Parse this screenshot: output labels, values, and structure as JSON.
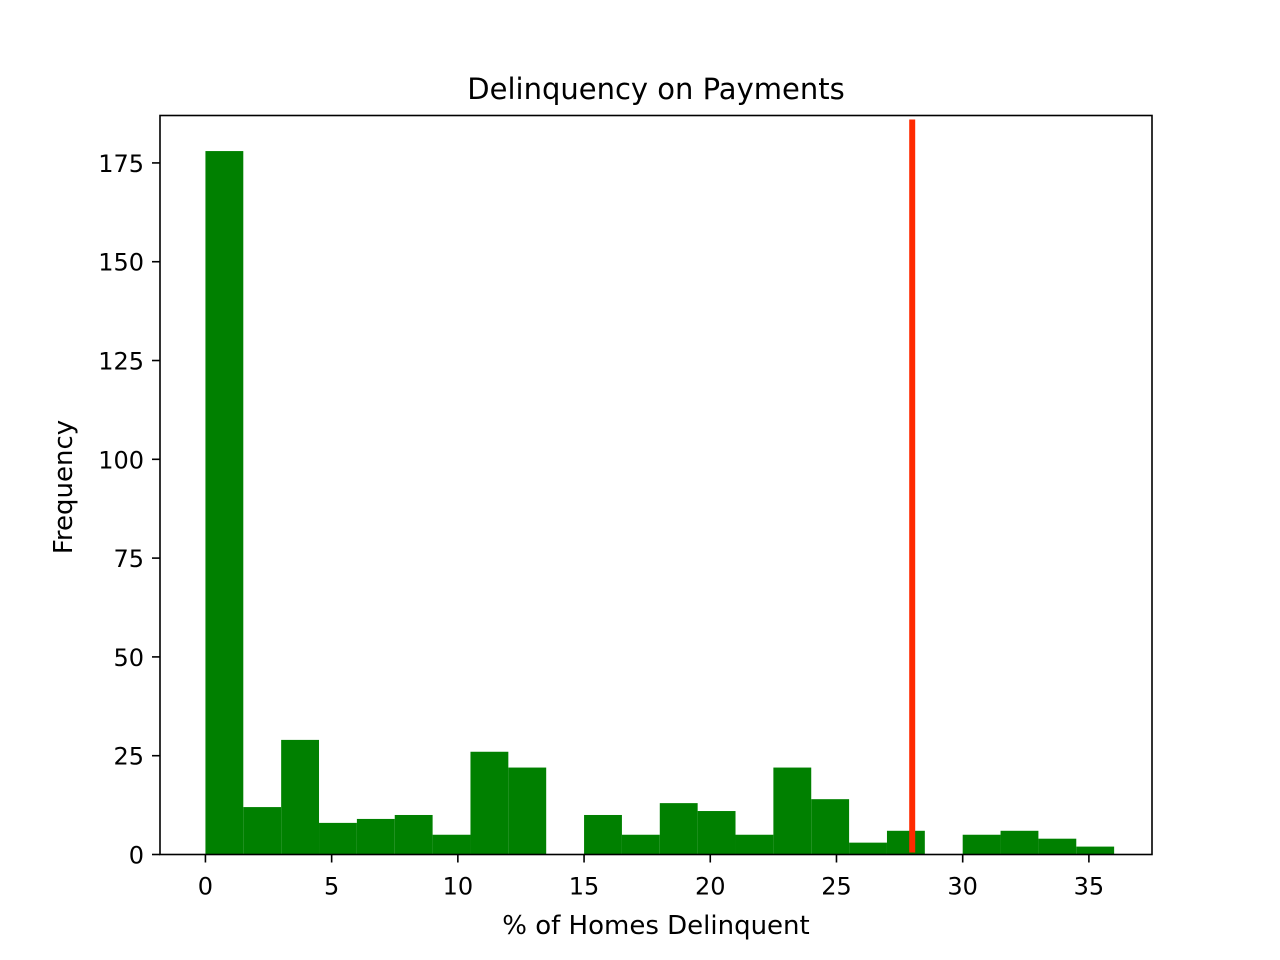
{
  "chart_data": {
    "type": "bar",
    "title": "Delinquency on Payments",
    "xlabel": "% of Homes Delinquent",
    "ylabel": "Frequency",
    "xlim": [
      -1.8,
      37.5
    ],
    "ylim": [
      0,
      187
    ],
    "xticks": [
      0,
      5,
      10,
      15,
      20,
      25,
      30,
      35
    ],
    "yticks": [
      0,
      25,
      50,
      75,
      100,
      125,
      150,
      175
    ],
    "bin_width": 1.5,
    "bins": [
      {
        "x0": 0.0,
        "x1": 1.5,
        "count": 178
      },
      {
        "x0": 1.5,
        "x1": 3.0,
        "count": 12
      },
      {
        "x0": 3.0,
        "x1": 4.5,
        "count": 29
      },
      {
        "x0": 4.5,
        "x1": 6.0,
        "count": 8
      },
      {
        "x0": 6.0,
        "x1": 7.5,
        "count": 9
      },
      {
        "x0": 7.5,
        "x1": 9.0,
        "count": 10
      },
      {
        "x0": 9.0,
        "x1": 10.5,
        "count": 5
      },
      {
        "x0": 10.5,
        "x1": 12.0,
        "count": 26
      },
      {
        "x0": 12.0,
        "x1": 13.5,
        "count": 22
      },
      {
        "x0": 13.5,
        "x1": 15.0,
        "count": 0
      },
      {
        "x0": 15.0,
        "x1": 16.5,
        "count": 10
      },
      {
        "x0": 16.5,
        "x1": 18.0,
        "count": 5
      },
      {
        "x0": 18.0,
        "x1": 19.5,
        "count": 13
      },
      {
        "x0": 19.5,
        "x1": 21.0,
        "count": 11
      },
      {
        "x0": 21.0,
        "x1": 22.5,
        "count": 5
      },
      {
        "x0": 22.5,
        "x1": 24.0,
        "count": 22
      },
      {
        "x0": 24.0,
        "x1": 25.5,
        "count": 14
      },
      {
        "x0": 25.5,
        "x1": 27.0,
        "count": 3
      },
      {
        "x0": 27.0,
        "x1": 28.5,
        "count": 6
      },
      {
        "x0": 28.5,
        "x1": 30.0,
        "count": 0
      },
      {
        "x0": 30.0,
        "x1": 31.5,
        "count": 5
      },
      {
        "x0": 31.5,
        "x1": 33.0,
        "count": 6
      },
      {
        "x0": 33.0,
        "x1": 34.5,
        "count": 4
      },
      {
        "x0": 34.5,
        "x1": 36.0,
        "count": 2
      }
    ],
    "reference_line": {
      "x": 28.0,
      "y_from": 0.5,
      "y_to": 186,
      "color": "#ff2a00"
    },
    "bar_color": "#008000",
    "grid": false,
    "legend": "none"
  }
}
